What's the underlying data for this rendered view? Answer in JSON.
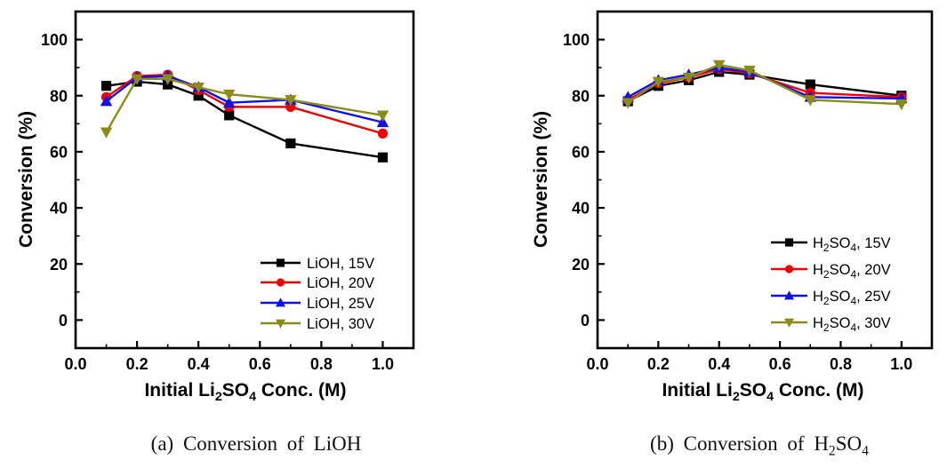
{
  "figure": {
    "background": "#ffffff"
  },
  "chart_data": [
    {
      "type": "line",
      "panel": "a",
      "caption_parts": [
        {
          "t": "(a) Conversion of LiOH"
        }
      ],
      "ylabel": "Conversion (%)",
      "xlabel_parts": [
        {
          "t": "Initial Li"
        },
        {
          "t": "2",
          "sub": true
        },
        {
          "t": "SO"
        },
        {
          "t": "4",
          "sub": true
        },
        {
          "t": " Conc. (M)"
        }
      ],
      "xlim": [
        0,
        1.1
      ],
      "ylim": [
        -10,
        110
      ],
      "xtick_values": [
        0,
        0.2,
        0.4,
        0.6,
        0.8,
        1.0
      ],
      "xtick_labels": [
        "0.0",
        "0.2",
        "0.4",
        "0.6",
        "0.8",
        "1.0"
      ],
      "ytick_values": [
        0,
        20,
        40,
        60,
        80,
        100
      ],
      "ytick_labels": [
        "0",
        "20",
        "40",
        "60",
        "80",
        "100"
      ],
      "minor_x_step": 0.1,
      "minor_y_step": 10,
      "grid": false,
      "legend_position": "lower-right-inside",
      "x": [
        0.1,
        0.2,
        0.3,
        0.4,
        0.5,
        0.7,
        1.0
      ],
      "series": [
        {
          "label_parts": [
            {
              "t": "LiOH, 15V"
            }
          ],
          "color": "#000000",
          "marker": "square",
          "values": [
            83.5,
            85,
            84,
            80,
            73,
            63,
            58
          ]
        },
        {
          "label_parts": [
            {
              "t": "LiOH, 20V"
            }
          ],
          "color": "#f20000",
          "marker": "circle",
          "values": [
            79.5,
            87,
            87.5,
            82,
            76,
            76,
            66.5
          ]
        },
        {
          "label_parts": [
            {
              "t": "LiOH, 25V"
            }
          ],
          "color": "#1010e8",
          "marker": "triangle-up",
          "values": [
            78,
            86.5,
            87,
            83,
            77.5,
            78.5,
            70.5
          ]
        },
        {
          "label_parts": [
            {
              "t": "LiOH, 30V"
            }
          ],
          "color": "#8b8b17",
          "marker": "triangle-down",
          "values": [
            67,
            86,
            86,
            83,
            80.5,
            78.5,
            73
          ]
        }
      ]
    },
    {
      "type": "line",
      "panel": "b",
      "caption_parts": [
        {
          "t": "(b) Conversion of H"
        },
        {
          "t": "2",
          "sub": true
        },
        {
          "t": "SO"
        },
        {
          "t": "4",
          "sub": true
        }
      ],
      "ylabel": "Conversion (%)",
      "xlabel_parts": [
        {
          "t": "Initial Li"
        },
        {
          "t": "2",
          "sub": true
        },
        {
          "t": "SO"
        },
        {
          "t": "4",
          "sub": true
        },
        {
          "t": " Conc. (M)"
        }
      ],
      "xlim": [
        0,
        1.1
      ],
      "ylim": [
        -10,
        110
      ],
      "xtick_values": [
        0,
        0.2,
        0.4,
        0.6,
        0.8,
        1.0
      ],
      "xtick_labels": [
        "0.0",
        "0.2",
        "0.4",
        "0.6",
        "0.8",
        "1.0"
      ],
      "ytick_values": [
        0,
        20,
        40,
        60,
        80,
        100
      ],
      "ytick_labels": [
        "0",
        "20",
        "40",
        "60",
        "80",
        "100"
      ],
      "minor_x_step": 0.1,
      "minor_y_step": 10,
      "grid": false,
      "legend_position": "lower-right-inside",
      "x": [
        0.1,
        0.2,
        0.3,
        0.4,
        0.5,
        0.7,
        1.0
      ],
      "series": [
        {
          "label_parts": [
            {
              "t": "H"
            },
            {
              "t": "2",
              "sub": true
            },
            {
              "t": "SO"
            },
            {
              "t": "4",
              "sub": true
            },
            {
              "t": ", 15V"
            }
          ],
          "color": "#000000",
          "marker": "square",
          "values": [
            78,
            83.5,
            85.5,
            88.5,
            87.5,
            84,
            80
          ]
        },
        {
          "label_parts": [
            {
              "t": "H"
            },
            {
              "t": "2",
              "sub": true
            },
            {
              "t": "SO"
            },
            {
              "t": "4",
              "sub": true
            },
            {
              "t": ", 20V"
            }
          ],
          "color": "#f20000",
          "marker": "circle",
          "values": [
            78.5,
            84.5,
            86.5,
            89.5,
            88,
            81,
            79.5
          ]
        },
        {
          "label_parts": [
            {
              "t": "H"
            },
            {
              "t": "2",
              "sub": true
            },
            {
              "t": "SO"
            },
            {
              "t": "4",
              "sub": true
            },
            {
              "t": ", 25V"
            }
          ],
          "color": "#1010e8",
          "marker": "triangle-up",
          "values": [
            79.5,
            85.5,
            87.5,
            90,
            88.5,
            79.5,
            79
          ]
        },
        {
          "label_parts": [
            {
              "t": "H"
            },
            {
              "t": "2",
              "sub": true
            },
            {
              "t": "SO"
            },
            {
              "t": "4",
              "sub": true
            },
            {
              "t": ", 30V"
            }
          ],
          "color": "#8b8b17",
          "marker": "triangle-down",
          "values": [
            77.5,
            85,
            86.5,
            91,
            89,
            78.5,
            77
          ]
        }
      ]
    }
  ]
}
